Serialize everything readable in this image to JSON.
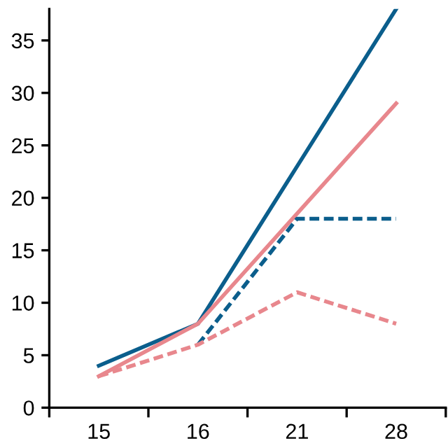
{
  "chart_data": {
    "type": "line",
    "categories": [
      "15",
      "16",
      "21",
      "28"
    ],
    "series": [
      {
        "color": "#0b5e8c",
        "values": [
          4,
          8,
          23,
          38
        ],
        "line_style": "solid"
      },
      {
        "color": "#e8878d",
        "values": [
          3,
          8,
          18.5,
          29
        ],
        "line_style": "solid"
      },
      {
        "color": "#0b5e8c",
        "values": [
          null,
          6,
          18,
          18
        ],
        "line_style": "dashed"
      },
      {
        "color": "#e8878d",
        "values": [
          3,
          6,
          11,
          8
        ],
        "line_style": "dashed"
      }
    ],
    "ylim": [
      0,
      38
    ],
    "yticks": [
      0,
      5,
      10,
      15,
      20,
      25,
      30,
      35
    ],
    "grid": false,
    "legend": false,
    "marker": "none"
  }
}
